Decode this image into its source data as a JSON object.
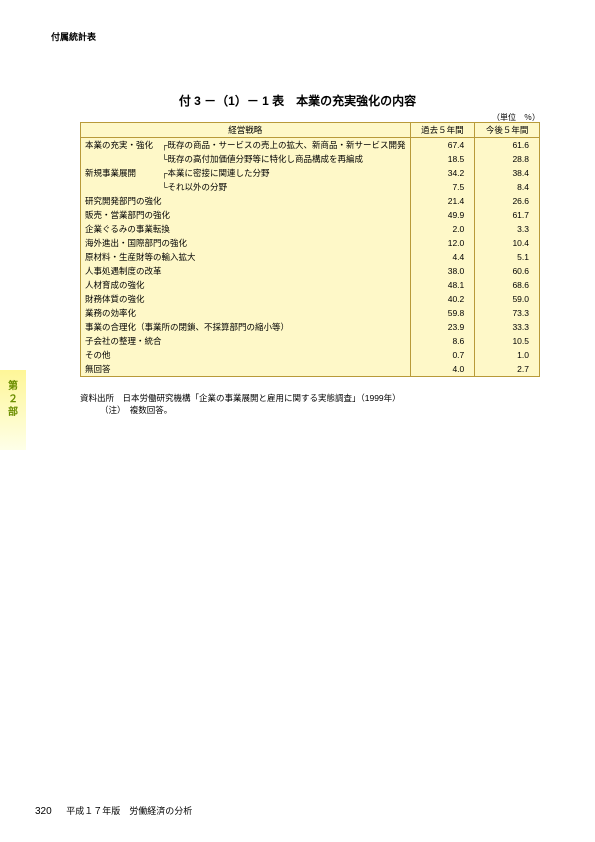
{
  "header_label": "付属統計表",
  "title": "付 3 －（1）－ 1 表　本業の充実強化の内容",
  "unit": "（単位　％）",
  "columns": {
    "strategy": "経営戦略",
    "past": "過去５年間",
    "future": "今後５年間"
  },
  "rows": [
    {
      "label": "本業の充実・強化　┌既存の商品・サービスの売上の拡大、新商品・新サービス開発",
      "past": "67.4",
      "future": "61.6"
    },
    {
      "label": "　　　　　　　　　└既存の高付加価値分野等に特化し商品構成を再編成",
      "past": "18.5",
      "future": "28.8"
    },
    {
      "label": "新規事業展開　　　┌本業に密接に関連した分野",
      "past": "34.2",
      "future": "38.4"
    },
    {
      "label": "　　　　　　　　　└それ以外の分野",
      "past": "7.5",
      "future": "8.4"
    },
    {
      "label": "研究開発部門の強化",
      "past": "21.4",
      "future": "26.6"
    },
    {
      "label": "販売・営業部門の強化",
      "past": "49.9",
      "future": "61.7"
    },
    {
      "label": "企業ぐるみの事業転換",
      "past": "2.0",
      "future": "3.3"
    },
    {
      "label": "海外進出・国際部門の強化",
      "past": "12.0",
      "future": "10.4"
    },
    {
      "label": "原材料・生産財等の輸入拡大",
      "past": "4.4",
      "future": "5.1"
    },
    {
      "label": "人事処遇制度の改革",
      "past": "38.0",
      "future": "60.6"
    },
    {
      "label": "人材育成の強化",
      "past": "48.1",
      "future": "68.6"
    },
    {
      "label": "財務体質の強化",
      "past": "40.2",
      "future": "59.0"
    },
    {
      "label": "業務の効率化",
      "past": "59.8",
      "future": "73.3"
    },
    {
      "label": "事業の合理化（事業所の閉鎖、不採算部門の縮小等）",
      "past": "23.9",
      "future": "33.3"
    },
    {
      "label": "子会社の整理・統合",
      "past": "8.6",
      "future": "10.5"
    },
    {
      "label": "その他",
      "past": "0.7",
      "future": "1.0"
    },
    {
      "label": "無回答",
      "past": "4.0",
      "future": "2.7"
    }
  ],
  "source": "資料出所　日本労働研究機構「企業の事業展開と雇用に関する実態調査」（1999年）",
  "note": "（注）　複数回答。",
  "side_tab": [
    "第",
    "２",
    "部"
  ],
  "footer_pageno": "320",
  "footer_text": "平成１７年版　労働経済の分析",
  "colors": {
    "table_bg": "#fef8c8",
    "border": "#b89a3a",
    "side_tab_text": "#6b8e00"
  }
}
